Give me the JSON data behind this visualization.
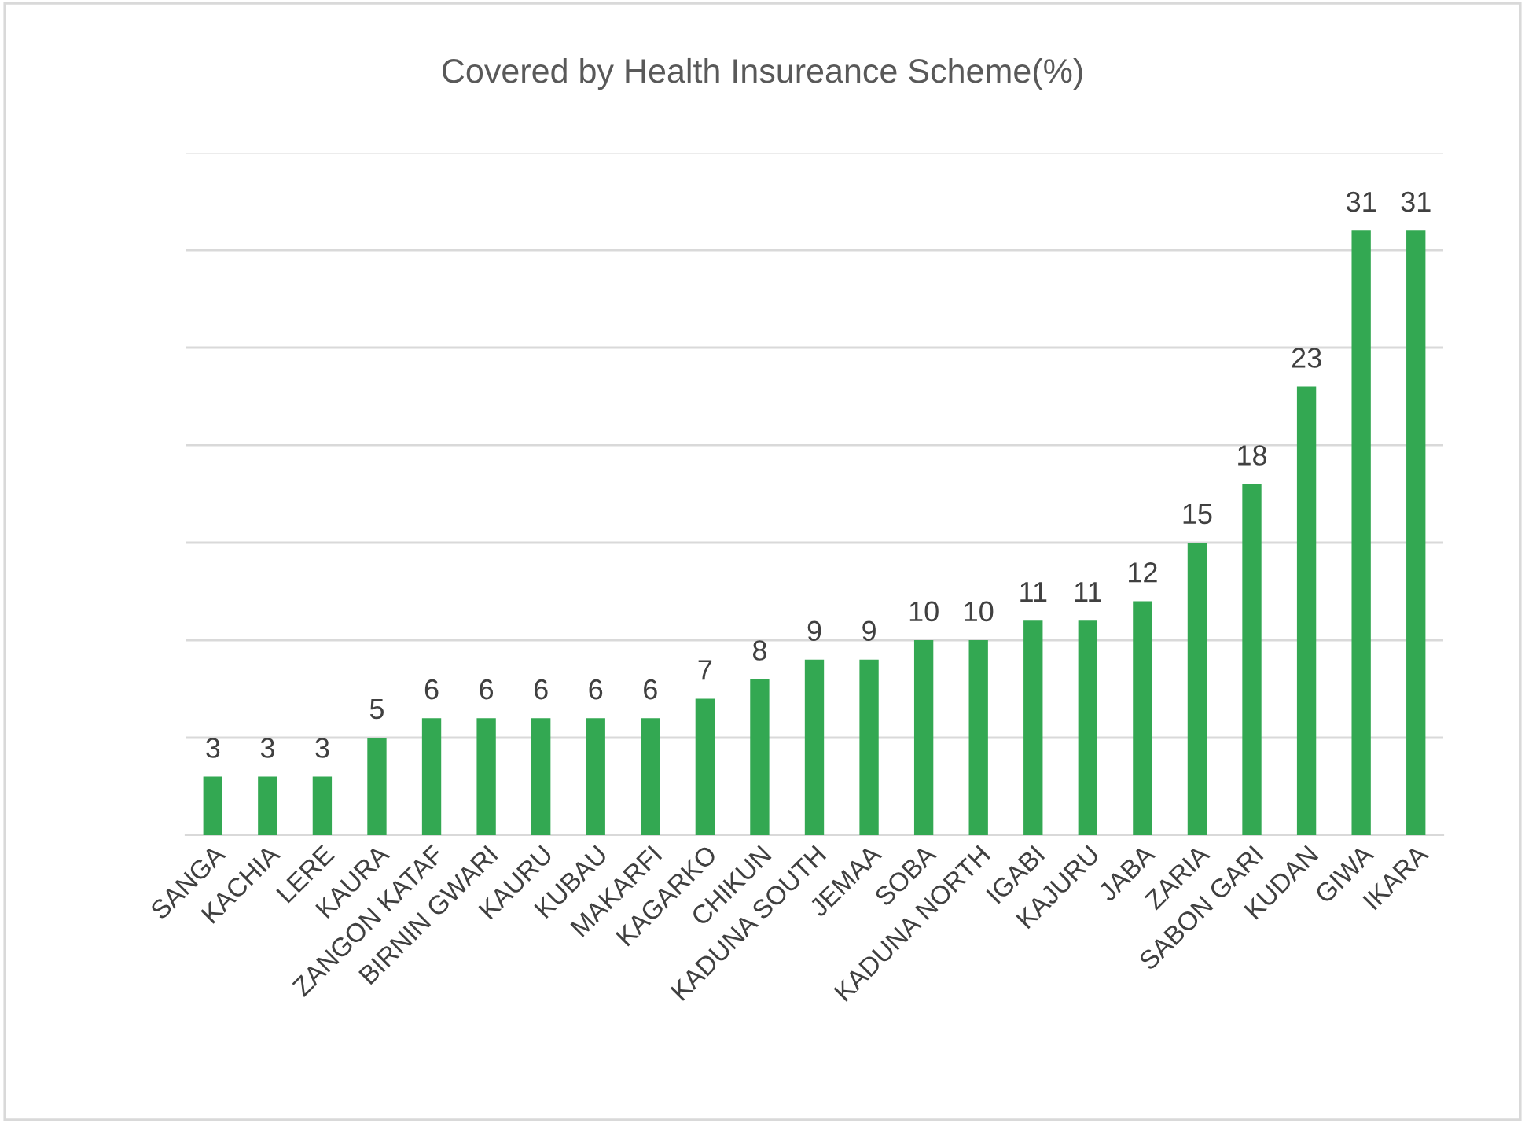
{
  "chart_data": {
    "type": "bar",
    "title": "Covered by Health Insureance Scheme(%)",
    "categories": [
      "SANGA",
      "KACHIA",
      "LERE",
      "KAURA",
      "ZANGON KATAF",
      "BIRNIN GWARI",
      "KAURU",
      "KUBAU",
      "MAKARFI",
      "KAGARKO",
      "CHIKUN",
      "KADUNA SOUTH",
      "JEMAA",
      "SOBA",
      "KADUNA NORTH",
      "IGABI",
      "KAJURU",
      "JABA",
      "ZARIA",
      "SABON GARI",
      "KUDAN",
      "GIWA",
      "IKARA"
    ],
    "values": [
      3,
      3,
      3,
      5,
      6,
      6,
      6,
      6,
      6,
      7,
      8,
      9,
      9,
      10,
      10,
      11,
      11,
      12,
      15,
      18,
      23,
      31,
      31
    ],
    "color": "#33a852",
    "data_labels": true,
    "ylim": [
      0,
      35
    ],
    "yticks": [
      {
        "value": 0,
        "label": null
      },
      {
        "value": 5,
        "label": null
      },
      {
        "value": 10,
        "label": null
      },
      {
        "value": 15,
        "label": null
      },
      {
        "value": 20,
        "label": null
      },
      {
        "value": 25,
        "label": null
      },
      {
        "value": 30,
        "label": null
      },
      {
        "value": 35,
        "label": null
      }
    ],
    "tick_labels": "x",
    "grid": "y"
  }
}
